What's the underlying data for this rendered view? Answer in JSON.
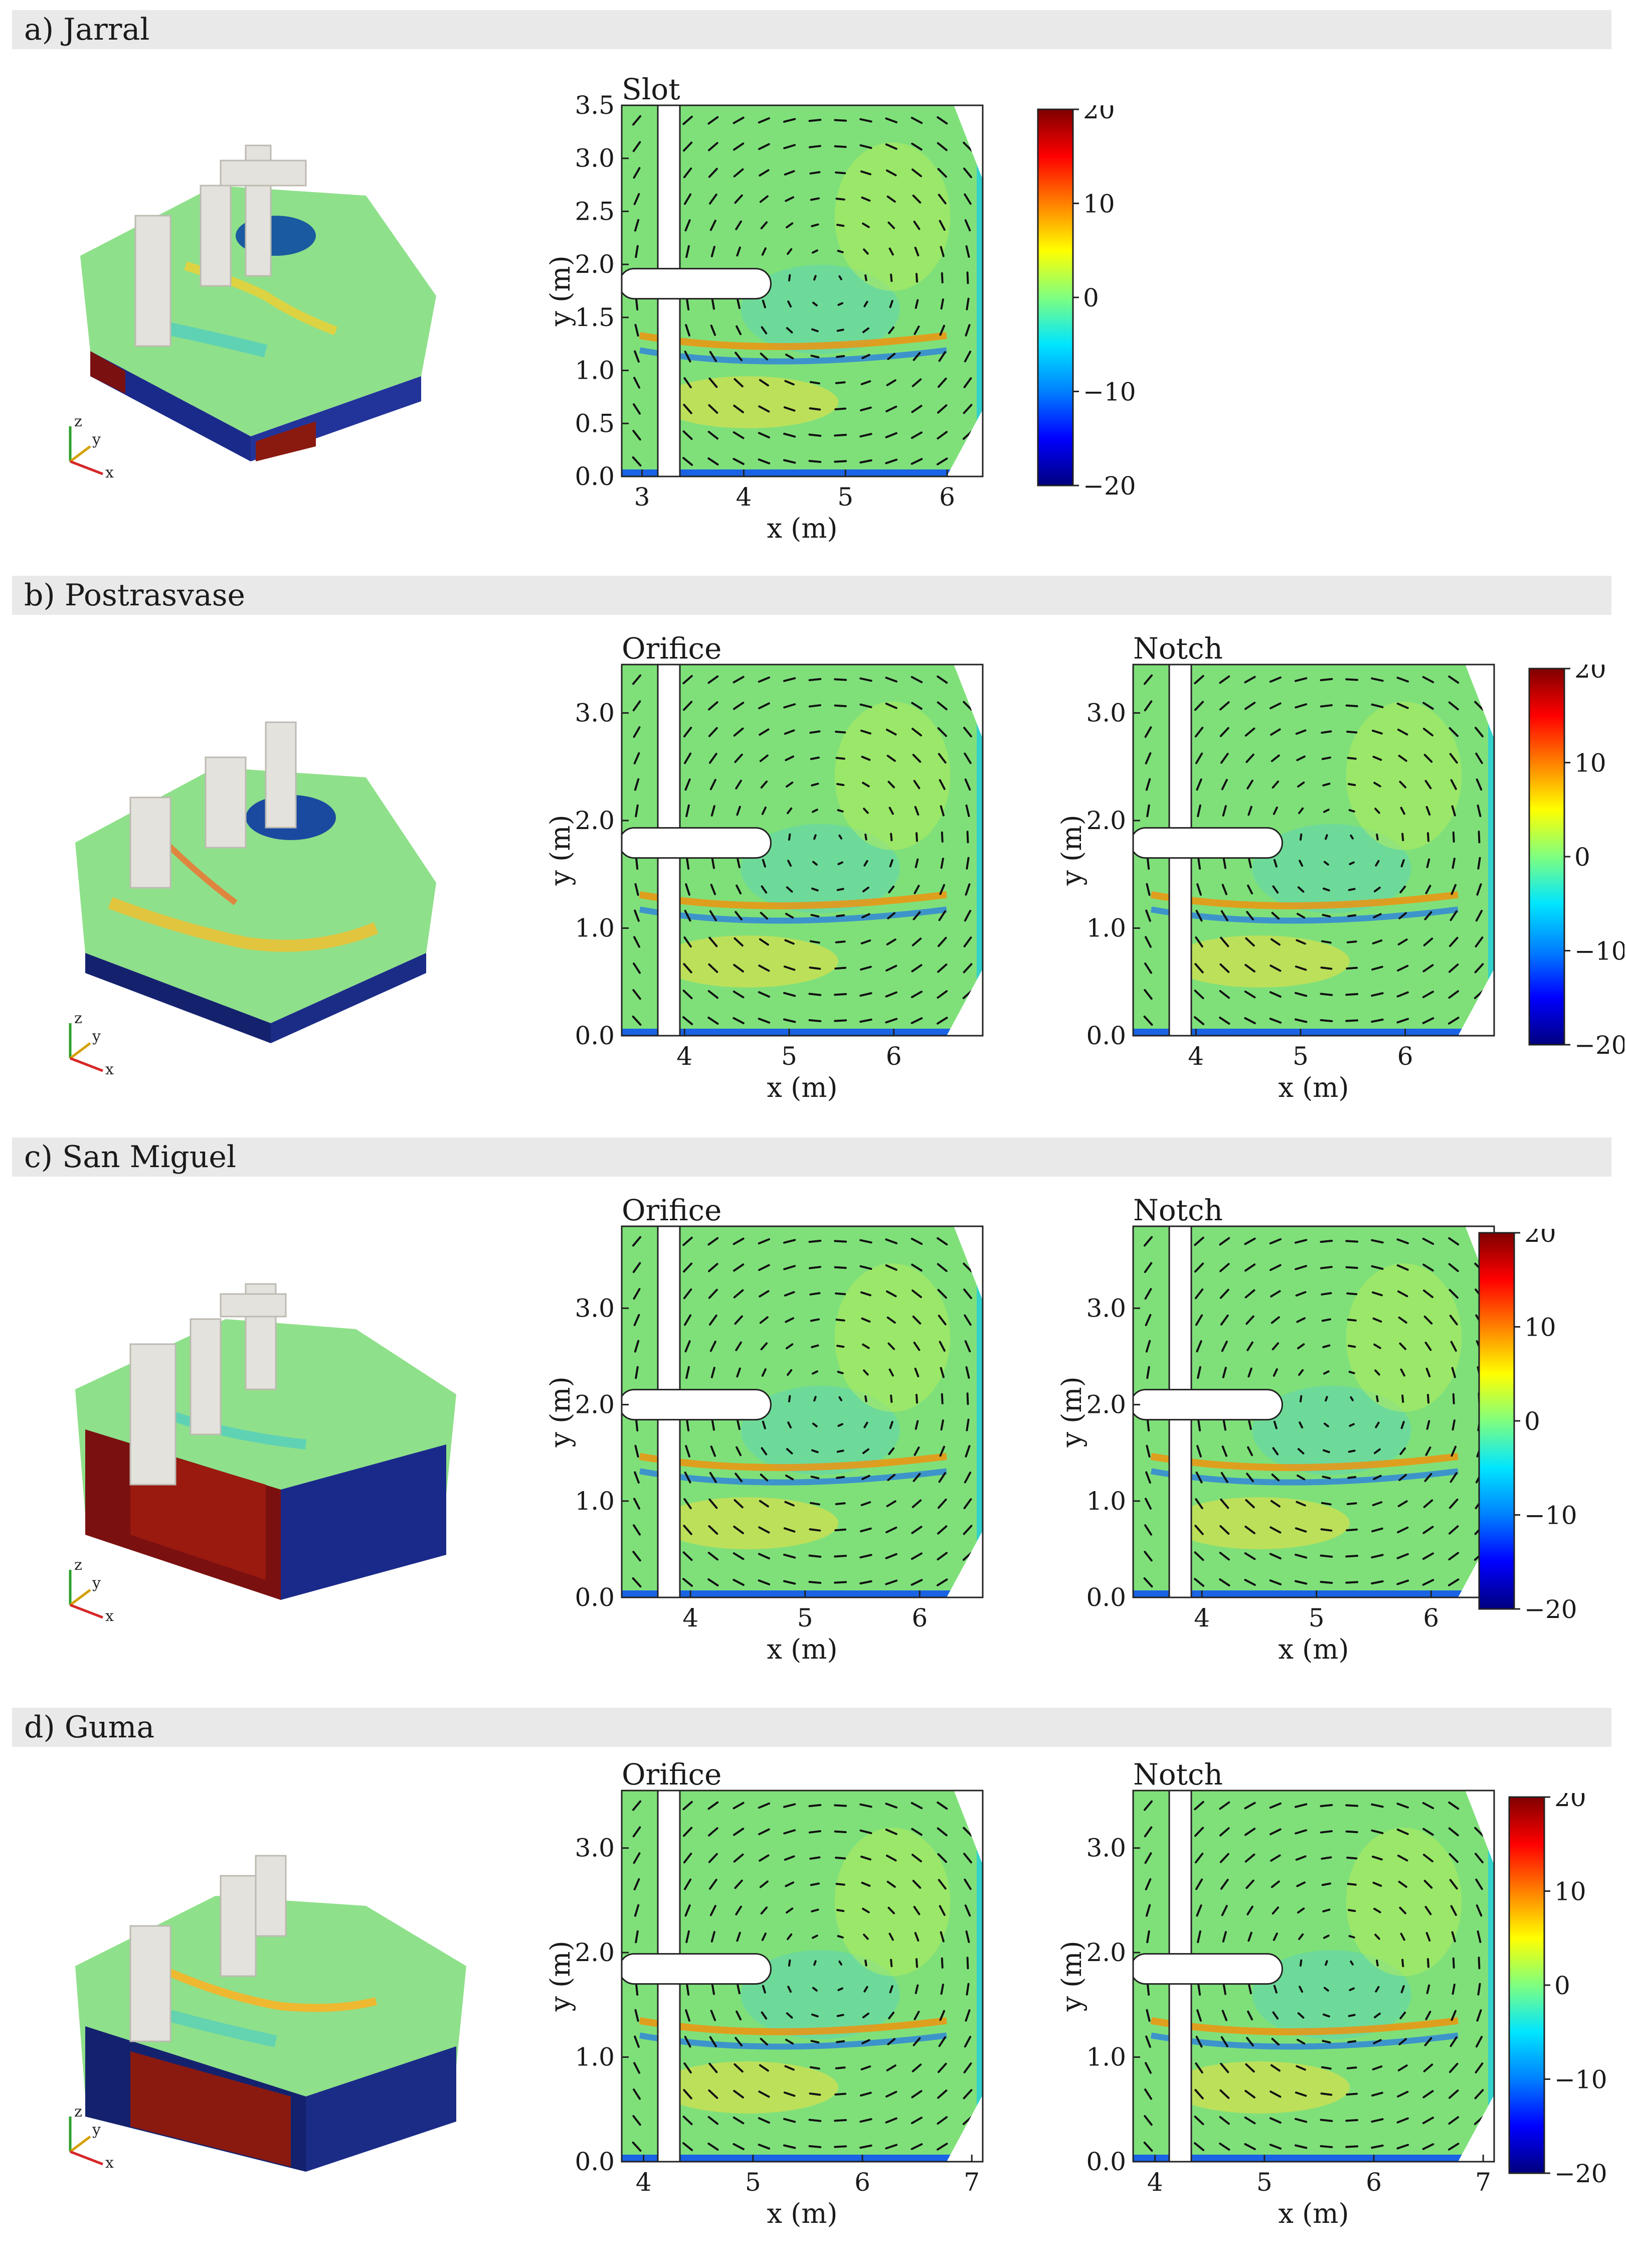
{
  "sections": [
    {
      "label": "a) Jarral"
    },
    {
      "label": "b) Postrasvase"
    },
    {
      "label": "c) San Miguel"
    },
    {
      "label": "d) Guma"
    }
  ],
  "colorscale": {
    "stops": [
      "#00007f",
      "#0000ff",
      "#0080ff",
      "#00e5ff",
      "#7fff7f",
      "#ffff00",
      "#ff8000",
      "#ff0000",
      "#7f0000"
    ],
    "field_color": "#7fe07a"
  },
  "chart_data": [
    {
      "type": "heatmap",
      "section": 0,
      "title": "Slot",
      "xlabel": "x (m)",
      "ylabel": "y (m)",
      "xlim": [
        2.8,
        6.35
      ],
      "ylim": [
        0,
        3.5
      ],
      "xticks": [
        "3",
        "4",
        "5",
        "6"
      ],
      "xtick_values": [
        3,
        4,
        5,
        6
      ],
      "yticks": [
        "0.0",
        "0.5",
        "1.0",
        "1.5",
        "2.0",
        "2.5",
        "3.0",
        "3.5"
      ],
      "ytick_values": [
        0,
        0.5,
        1,
        1.5,
        2,
        2.5,
        3,
        3.5
      ],
      "colorbar": {
        "ticks": [
          "20",
          "10",
          "0",
          "−10",
          "−20"
        ],
        "range": [
          -20,
          20
        ]
      }
    },
    {
      "type": "heatmap",
      "section": 1,
      "title": "Orifice",
      "xlabel": "x (m)",
      "ylabel": "y (m)",
      "xlim": [
        3.4,
        6.85
      ],
      "ylim": [
        0,
        3.45
      ],
      "xticks": [
        "4",
        "5",
        "6"
      ],
      "xtick_values": [
        4,
        5,
        6
      ],
      "yticks": [
        "0.0",
        "1.0",
        "2.0",
        "3.0"
      ],
      "ytick_values": [
        0,
        1,
        2,
        3
      ]
    },
    {
      "type": "heatmap",
      "section": 1,
      "title": "Notch",
      "xlabel": "x (m)",
      "ylabel": "y (m)",
      "xlim": [
        3.4,
        6.85
      ],
      "ylim": [
        0,
        3.45
      ],
      "xticks": [
        "4",
        "5",
        "6"
      ],
      "xtick_values": [
        4,
        5,
        6
      ],
      "yticks": [
        "0.0",
        "1.0",
        "2.0",
        "3.0"
      ],
      "ytick_values": [
        0,
        1,
        2,
        3
      ],
      "colorbar": {
        "ticks": [
          "20",
          "10",
          "0",
          "−10",
          "−20"
        ],
        "range": [
          -20,
          20
        ]
      }
    },
    {
      "type": "heatmap",
      "section": 2,
      "title": "Orifice",
      "xlabel": "x (m)",
      "ylabel": "y (m)",
      "xlim": [
        3.4,
        6.55
      ],
      "ylim": [
        0,
        3.85
      ],
      "xticks": [
        "4",
        "5",
        "6"
      ],
      "xtick_values": [
        4,
        5,
        6
      ],
      "yticks": [
        "0.0",
        "1.0",
        "2.0",
        "3.0"
      ],
      "ytick_values": [
        0,
        1,
        2,
        3
      ]
    },
    {
      "type": "heatmap",
      "section": 2,
      "title": "Notch",
      "xlabel": "x (m)",
      "ylabel": "y (m)",
      "xlim": [
        3.4,
        6.55
      ],
      "ylim": [
        0,
        3.85
      ],
      "xticks": [
        "4",
        "5",
        "6"
      ],
      "xtick_values": [
        4,
        5,
        6
      ],
      "yticks": [
        "0.0",
        "1.0",
        "2.0",
        "3.0"
      ],
      "ytick_values": [
        0,
        1,
        2,
        3
      ],
      "colorbar": {
        "ticks": [
          "20",
          "10",
          "0",
          "−10",
          "−20"
        ],
        "range": [
          -20,
          20
        ]
      }
    },
    {
      "type": "heatmap",
      "section": 3,
      "title": "Orifice",
      "xlabel": "x (m)",
      "ylabel": "y (m)",
      "xlim": [
        3.8,
        7.1
      ],
      "ylim": [
        0,
        3.55
      ],
      "xticks": [
        "4",
        "5",
        "6",
        "7"
      ],
      "xtick_values": [
        4,
        5,
        6,
        7
      ],
      "yticks": [
        "0.0",
        "1.0",
        "2.0",
        "3.0"
      ],
      "ytick_values": [
        0,
        1,
        2,
        3
      ]
    },
    {
      "type": "heatmap",
      "section": 3,
      "title": "Notch",
      "xlabel": "x (m)",
      "ylabel": "y (m)",
      "xlim": [
        3.8,
        7.1
      ],
      "ylim": [
        0,
        3.55
      ],
      "xticks": [
        "4",
        "5",
        "6",
        "7"
      ],
      "xtick_values": [
        4,
        5,
        6,
        7
      ],
      "yticks": [
        "0.0",
        "1.0",
        "2.0",
        "3.0"
      ],
      "ytick_values": [
        0,
        1,
        2,
        3
      ],
      "colorbar": {
        "ticks": [
          "20",
          "10",
          "0",
          "−10",
          "−20"
        ],
        "range": [
          -20,
          20
        ]
      }
    }
  ],
  "axes_triad": {
    "z": "z",
    "y": "y",
    "x": "x",
    "z_color": "#2ca02c",
    "y_color": "#d4a000",
    "x_color": "#d62728"
  }
}
